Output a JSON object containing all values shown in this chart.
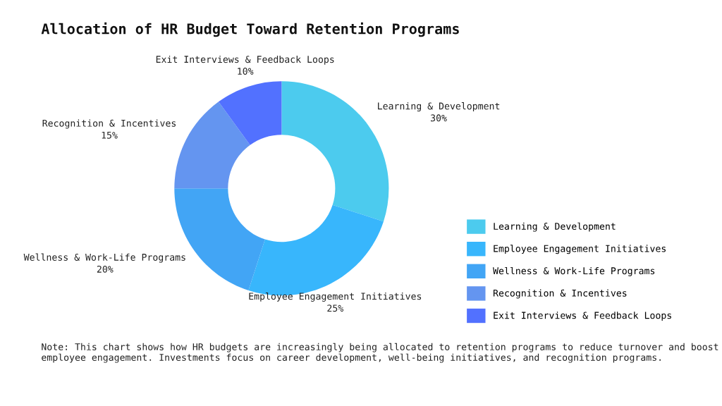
{
  "chart_data": {
    "type": "donut",
    "title": "Allocation of HR Budget Toward Retention Programs",
    "categories": [
      "Learning & Development",
      "Employee Engagement Initiatives",
      "Wellness & Work-Life Programs",
      "Recognition & Incentives",
      "Exit Interviews & Feedback Loops"
    ],
    "values": [
      30,
      25,
      20,
      15,
      10
    ],
    "colors": [
      "#4ccbee",
      "#38b6fc",
      "#42a5f5",
      "#6495f0",
      "#5271ff"
    ],
    "value_labels": [
      "30%",
      "25%",
      "20%",
      "15%",
      "10%"
    ],
    "legend": "right",
    "annotations": [
      "Note: This chart shows how HR budgets are increasingly being allocated to retention programs to reduce turnover and boost employee engagement. Investments focus on career development, well-being initiatives, and recognition programs."
    ]
  }
}
